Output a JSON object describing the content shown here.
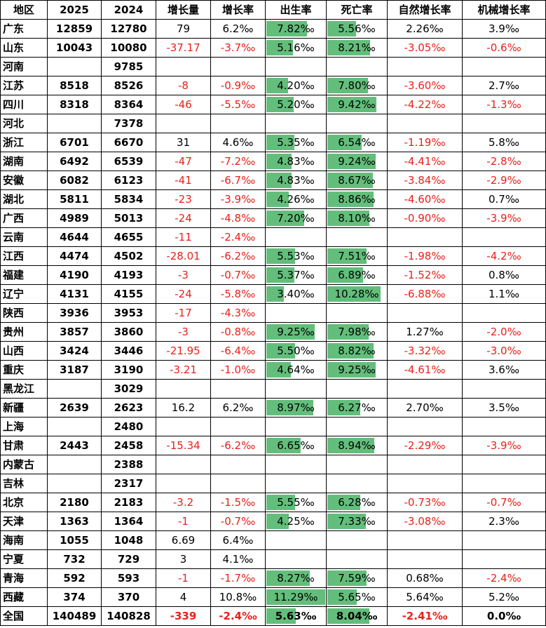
{
  "headers": [
    "地区",
    "2025",
    "2024",
    "增长量",
    "增长率",
    "出生率",
    "死亡率",
    "自然增长率",
    "机械增长率"
  ],
  "rows": [
    {
      "region": "广东",
      "y2025": "12859",
      "y2024": "12780",
      "inc": "79",
      "rate": "6.2‰",
      "birth": "7.82‰",
      "birth_v": 7.82,
      "death": "5.56‰",
      "death_v": 5.56,
      "natural": "2.26‰",
      "mech": "3.9‰"
    },
    {
      "region": "山东",
      "y2025": "10043",
      "y2024": "10080",
      "inc": "-37.17",
      "rate": "-3.7‰",
      "birth": "5.16‰",
      "birth_v": 5.16,
      "death": "8.21‰",
      "death_v": 8.21,
      "natural": "-3.05‰",
      "mech": "-0.6‰"
    },
    {
      "region": "河南",
      "y2025": "",
      "y2024": "9785",
      "inc": "",
      "rate": "",
      "birth": "",
      "birth_v": 0,
      "death": "",
      "death_v": 0,
      "natural": "",
      "mech": ""
    },
    {
      "region": "江苏",
      "y2025": "8518",
      "y2024": "8526",
      "inc": "-8",
      "rate": "-0.9‰",
      "birth": "4.20‰",
      "birth_v": 4.2,
      "death": "7.80‰",
      "death_v": 7.8,
      "natural": "-3.60‰",
      "mech": "2.7‰"
    },
    {
      "region": "四川",
      "y2025": "8318",
      "y2024": "8364",
      "inc": "-46",
      "rate": "-5.5‰",
      "birth": "5.20‰",
      "birth_v": 5.2,
      "death": "9.42‰",
      "death_v": 9.42,
      "natural": "-4.22‰",
      "mech": "-1.3‰"
    },
    {
      "region": "河北",
      "y2025": "",
      "y2024": "7378",
      "inc": "",
      "rate": "",
      "birth": "",
      "birth_v": 0,
      "death": "",
      "death_v": 0,
      "natural": "",
      "mech": ""
    },
    {
      "region": "浙江",
      "y2025": "6701",
      "y2024": "6670",
      "inc": "31",
      "rate": "4.6‰",
      "birth": "5.35‰",
      "birth_v": 5.35,
      "death": "6.54‰",
      "death_v": 6.54,
      "natural": "-1.19‰",
      "mech": "5.8‰"
    },
    {
      "region": "湖南",
      "y2025": "6492",
      "y2024": "6539",
      "inc": "-47",
      "rate": "-7.2‰",
      "birth": "4.83‰",
      "birth_v": 4.83,
      "death": "9.24‰",
      "death_v": 9.24,
      "natural": "-4.41‰",
      "mech": "-2.8‰"
    },
    {
      "region": "安徽",
      "y2025": "6082",
      "y2024": "6123",
      "inc": "-41",
      "rate": "-6.7‰",
      "birth": "4.83‰",
      "birth_v": 4.83,
      "death": "8.67‰",
      "death_v": 8.67,
      "natural": "-3.84‰",
      "mech": "-2.9‰"
    },
    {
      "region": "湖北",
      "y2025": "5811",
      "y2024": "5834",
      "inc": "-23",
      "rate": "-3.9‰",
      "birth": "4.26‰",
      "birth_v": 4.26,
      "death": "8.86‰",
      "death_v": 8.86,
      "natural": "-4.60‰",
      "mech": "0.7‰"
    },
    {
      "region": "广西",
      "y2025": "4989",
      "y2024": "5013",
      "inc": "-24",
      "rate": "-4.8‰",
      "birth": "7.20‰",
      "birth_v": 7.2,
      "death": "8.10‰",
      "death_v": 8.1,
      "natural": "-0.90‰",
      "mech": "-3.9‰"
    },
    {
      "region": "云南",
      "y2025": "4644",
      "y2024": "4655",
      "inc": "-11",
      "rate": "-2.4‰",
      "birth": "",
      "birth_v": 0,
      "death": "",
      "death_v": 0,
      "natural": "",
      "mech": ""
    },
    {
      "region": "江西",
      "y2025": "4474",
      "y2024": "4502",
      "inc": "-28.01",
      "rate": "-6.2‰",
      "birth": "5.53‰",
      "birth_v": 5.53,
      "death": "7.51‰",
      "death_v": 7.51,
      "natural": "-1.98‰",
      "mech": "-4.2‰"
    },
    {
      "region": "福建",
      "y2025": "4190",
      "y2024": "4193",
      "inc": "-3",
      "rate": "-0.7‰",
      "birth": "5.37‰",
      "birth_v": 5.37,
      "death": "6.89‰",
      "death_v": 6.89,
      "natural": "-1.52‰",
      "mech": "0.8‰"
    },
    {
      "region": "辽宁",
      "y2025": "4131",
      "y2024": "4155",
      "inc": "-24",
      "rate": "-5.8‰",
      "birth": "3.40‰",
      "birth_v": 3.4,
      "death": "10.28‰",
      "death_v": 10.28,
      "natural": "-6.88‰",
      "mech": "1.1‰"
    },
    {
      "region": "陕西",
      "y2025": "3936",
      "y2024": "3953",
      "inc": "-17",
      "rate": "-4.3‰",
      "birth": "",
      "birth_v": 0,
      "death": "",
      "death_v": 0,
      "natural": "",
      "mech": ""
    },
    {
      "region": "贵州",
      "y2025": "3857",
      "y2024": "3860",
      "inc": "-3",
      "rate": "-0.8‰",
      "birth": "9.25‰",
      "birth_v": 9.25,
      "death": "7.98‰",
      "death_v": 7.98,
      "natural": "1.27‰",
      "mech": "-2.0‰"
    },
    {
      "region": "山西",
      "y2025": "3424",
      "y2024": "3446",
      "inc": "-21.95",
      "rate": "-6.4‰",
      "birth": "5.50‰",
      "birth_v": 5.5,
      "death": "8.82‰",
      "death_v": 8.82,
      "natural": "-3.32‰",
      "mech": "-3.0‰"
    },
    {
      "region": "重庆",
      "y2025": "3187",
      "y2024": "3190",
      "inc": "-3.21",
      "rate": "-1.0‰",
      "birth": "4.64‰",
      "birth_v": 4.64,
      "death": "9.25‰",
      "death_v": 9.25,
      "natural": "-4.61‰",
      "mech": "3.6‰"
    },
    {
      "region": "黑龙江",
      "y2025": "",
      "y2024": "3029",
      "inc": "",
      "rate": "",
      "birth": "",
      "birth_v": 0,
      "death": "",
      "death_v": 0,
      "natural": "",
      "mech": ""
    },
    {
      "region": "新疆",
      "y2025": "2639",
      "y2024": "2623",
      "inc": "16.2",
      "rate": "6.2‰",
      "birth": "8.97‰",
      "birth_v": 8.97,
      "death": "6.27‰",
      "death_v": 6.27,
      "natural": "2.70‰",
      "mech": "3.5‰"
    },
    {
      "region": "上海",
      "y2025": "",
      "y2024": "2480",
      "inc": "",
      "rate": "",
      "birth": "",
      "birth_v": 0,
      "death": "",
      "death_v": 0,
      "natural": "",
      "mech": ""
    },
    {
      "region": "甘肃",
      "y2025": "2443",
      "y2024": "2458",
      "inc": "-15.34",
      "rate": "-6.2‰",
      "birth": "6.65‰",
      "birth_v": 6.65,
      "death": "8.94‰",
      "death_v": 8.94,
      "natural": "-2.29‰",
      "mech": "-3.9‰"
    },
    {
      "region": "内蒙古",
      "y2025": "",
      "y2024": "2388",
      "inc": "",
      "rate": "",
      "birth": "",
      "birth_v": 0,
      "death": "",
      "death_v": 0,
      "natural": "",
      "mech": ""
    },
    {
      "region": "吉林",
      "y2025": "",
      "y2024": "2317",
      "inc": "",
      "rate": "",
      "birth": "",
      "birth_v": 0,
      "death": "",
      "death_v": 0,
      "natural": "",
      "mech": ""
    },
    {
      "region": "北京",
      "y2025": "2180",
      "y2024": "2183",
      "inc": "-3.2",
      "rate": "-1.5‰",
      "birth": "5.55‰",
      "birth_v": 5.55,
      "death": "6.28‰",
      "death_v": 6.28,
      "natural": "-0.73‰",
      "mech": "-0.7‰"
    },
    {
      "region": "天津",
      "y2025": "1363",
      "y2024": "1364",
      "inc": "-1",
      "rate": "-0.7‰",
      "birth": "4.25‰",
      "birth_v": 4.25,
      "death": "7.33‰",
      "death_v": 7.33,
      "natural": "-3.08‰",
      "mech": "2.3‰"
    },
    {
      "region": "海南",
      "y2025": "1055",
      "y2024": "1048",
      "inc": "6.69",
      "rate": "6.4‰",
      "birth": "",
      "birth_v": 0,
      "death": "",
      "death_v": 0,
      "natural": "",
      "mech": ""
    },
    {
      "region": "宁夏",
      "y2025": "732",
      "y2024": "729",
      "inc": "3",
      "rate": "4.1‰",
      "birth": "",
      "birth_v": 0,
      "death": "",
      "death_v": 0,
      "natural": "",
      "mech": ""
    },
    {
      "region": "青海",
      "y2025": "592",
      "y2024": "593",
      "inc": "-1",
      "rate": "-1.7‰",
      "birth": "8.27‰",
      "birth_v": 8.27,
      "death": "7.59‰",
      "death_v": 7.59,
      "natural": "0.68‰",
      "mech": "-2.4‰"
    },
    {
      "region": "西藏",
      "y2025": "374",
      "y2024": "370",
      "inc": "4",
      "rate": "10.8‰",
      "birth": "11.29‰",
      "birth_v": 11.29,
      "death": "5.65‰",
      "death_v": 5.65,
      "natural": "5.64‰",
      "mech": "5.2‰"
    }
  ],
  "total": {
    "region": "全国",
    "y2025": "140489",
    "y2024": "140828",
    "inc": "-339",
    "rate": "-2.4‰",
    "birth": "5.63‰",
    "birth_v": 5.63,
    "death": "8.04‰",
    "death_v": 8.04,
    "natural": "-2.41‰",
    "mech": "0.0‰"
  },
  "colors": {
    "bar": "#63be7b",
    "negative": "#e8211a"
  }
}
